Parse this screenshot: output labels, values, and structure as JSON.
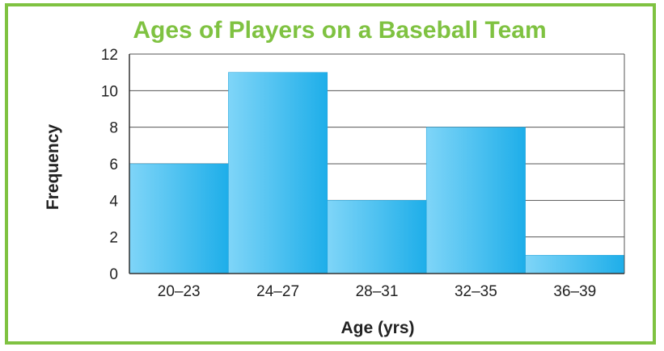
{
  "chart_data": {
    "type": "bar",
    "title": "Ages of Players on a Baseball Team",
    "xlabel": "Age (yrs)",
    "ylabel": "Frequency",
    "categories": [
      "20–23",
      "24–27",
      "28–31",
      "32–35",
      "36–39"
    ],
    "values": [
      6,
      11,
      4,
      8,
      1
    ],
    "ylim": [
      0,
      12
    ],
    "yticks": [
      "0",
      "2",
      "4",
      "6",
      "8",
      "10",
      "12"
    ],
    "grid": true,
    "colors": {
      "bar": "#29b5ec",
      "bar_light": "#7fd5f8",
      "title": "#7fc241",
      "frame": "#7fc241",
      "grid": "#555555"
    }
  }
}
